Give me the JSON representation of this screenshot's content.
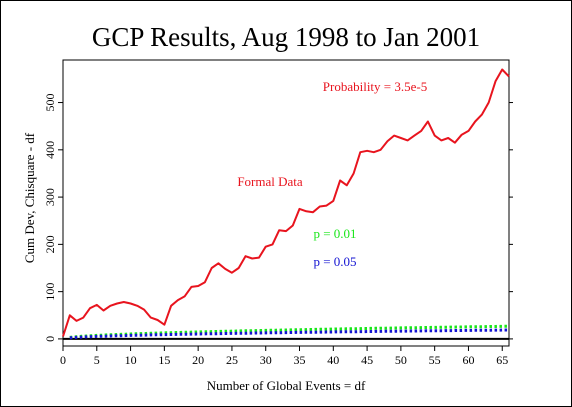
{
  "chart_data": {
    "type": "line",
    "title": "GCP Results, Aug 1998 to Jan 2001",
    "xlabel": "Number of Global Events = df",
    "ylabel": "Cum Dev, Chisquare - df",
    "xlim": [
      0,
      66
    ],
    "ylim": [
      -15,
      590
    ],
    "xticks": [
      0,
      5,
      10,
      15,
      20,
      25,
      30,
      35,
      40,
      45,
      50,
      55,
      60,
      65
    ],
    "yticks": [
      0,
      100,
      200,
      300,
      400,
      500
    ],
    "grid": false,
    "series": [
      {
        "name": "Formal Data",
        "color": "#e8141e",
        "style": "solid",
        "x": [
          0,
          1,
          2,
          3,
          4,
          5,
          6,
          7,
          8,
          9,
          10,
          11,
          12,
          13,
          14,
          15,
          16,
          17,
          18,
          19,
          20,
          21,
          22,
          23,
          24,
          25,
          26,
          27,
          28,
          29,
          30,
          31,
          32,
          33,
          34,
          35,
          36,
          37,
          38,
          39,
          40,
          41,
          42,
          43,
          44,
          45,
          46,
          47,
          48,
          49,
          50,
          51,
          52,
          53,
          54,
          55,
          56,
          57,
          58,
          59,
          60,
          61,
          62,
          63,
          64,
          65,
          66
        ],
        "values": [
          5,
          50,
          38,
          45,
          65,
          72,
          60,
          70,
          75,
          78,
          75,
          70,
          62,
          45,
          40,
          30,
          70,
          82,
          90,
          110,
          112,
          120,
          150,
          160,
          148,
          140,
          150,
          175,
          170,
          172,
          195,
          200,
          230,
          228,
          240,
          275,
          270,
          268,
          280,
          282,
          292,
          335,
          325,
          350,
          395,
          398,
          395,
          400,
          418,
          430,
          425,
          420,
          430,
          440,
          460,
          430,
          420,
          425,
          415,
          432,
          440,
          460,
          475,
          500,
          545,
          570,
          555
        ]
      },
      {
        "name": "p = 0.01",
        "color": "#19e619",
        "style": "dotted",
        "formula": "2.326 * sqrt(2 * df)"
      },
      {
        "name": "p = 0.05",
        "color": "#1414d2",
        "style": "dotted",
        "formula": "1.645 * sqrt(2 * df)"
      }
    ],
    "annotations": [
      {
        "text": "Probability = 3.5e-5",
        "color": "#e8141e"
      },
      {
        "text": "Formal Data",
        "color": "#e8141e"
      },
      {
        "text": "p = 0.01",
        "color": "#19e619"
      },
      {
        "text": "p = 0.05",
        "color": "#1414d2"
      }
    ],
    "zero_line": true
  }
}
